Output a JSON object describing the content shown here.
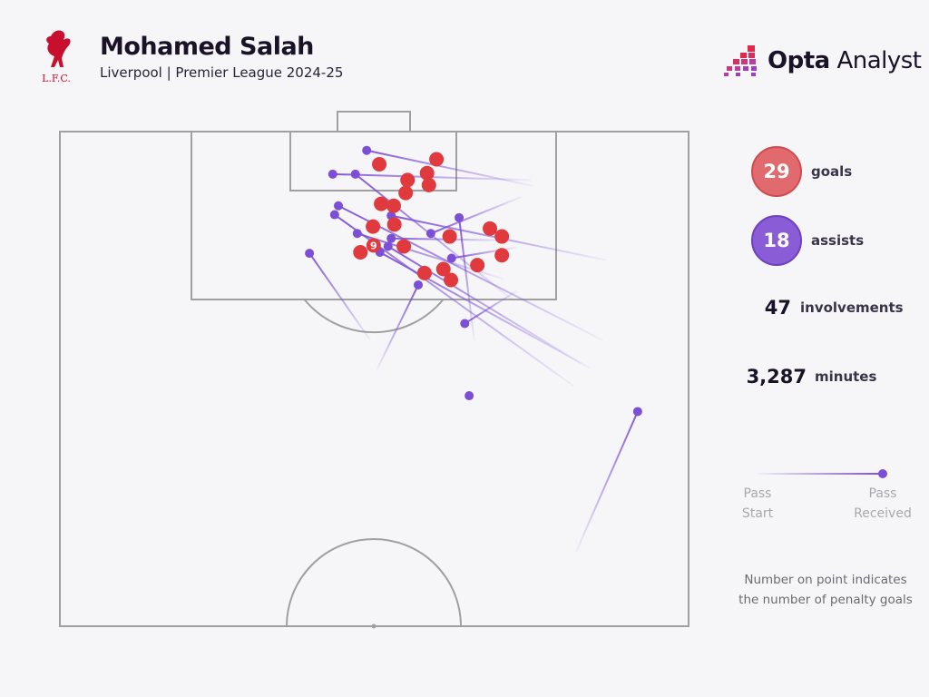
{
  "header": {
    "player": "Mohamed Salah",
    "subtitle": "Liverpool | Premier League 2024-25",
    "club_logo_text": "L.F.C.",
    "brand_bold": "Opta",
    "brand_light": "Analyst"
  },
  "stats": [
    {
      "value": "29",
      "label": "goals",
      "color": "#e06a6e"
    },
    {
      "value": "18",
      "label": "assists",
      "color": "#8a5cd6"
    },
    {
      "value": "47",
      "label": "involvements"
    },
    {
      "value": "3,287",
      "label": "minutes"
    }
  ],
  "legend": {
    "start": [
      "Pass",
      "Start"
    ],
    "received": [
      "Pass",
      "Received"
    ],
    "note": [
      "Number on point indicates",
      "the number of penalty goals"
    ]
  },
  "colors": {
    "goal": "#e0393e",
    "assist": "#7b4fd6",
    "pitch_line": "#a0a0a0",
    "background": "#f6f6f8"
  },
  "chart_data": {
    "type": "scatter",
    "pitch": "attacking half, goal at top; x = across pitch (0-100, left to right), y = length (100 = goal line, 50 = halfway)",
    "goals": [
      {
        "x": 50.8,
        "y": 96.7
      },
      {
        "x": 59.9,
        "y": 97.2
      },
      {
        "x": 58.4,
        "y": 95.8
      },
      {
        "x": 55.3,
        "y": 95.1
      },
      {
        "x": 58.7,
        "y": 94.6
      },
      {
        "x": 55.0,
        "y": 93.8
      },
      {
        "x": 51.1,
        "y": 92.7
      },
      {
        "x": 53.1,
        "y": 92.5
      },
      {
        "x": 53.2,
        "y": 90.6
      },
      {
        "x": 49.8,
        "y": 90.4
      },
      {
        "x": 62.0,
        "y": 89.4
      },
      {
        "x": 68.4,
        "y": 90.2
      },
      {
        "x": 70.3,
        "y": 89.4
      },
      {
        "x": 54.7,
        "y": 88.4
      },
      {
        "x": 49.9,
        "y": 88.5,
        "label": "9"
      },
      {
        "x": 47.8,
        "y": 87.8
      },
      {
        "x": 70.3,
        "y": 87.5
      },
      {
        "x": 66.4,
        "y": 86.5
      },
      {
        "x": 61.0,
        "y": 86.1
      },
      {
        "x": 58.0,
        "y": 85.7
      },
      {
        "x": 62.2,
        "y": 85.0
      }
    ],
    "assists": [
      {
        "received": [
          48.8,
          98.1
        ],
        "start": [
          75.3,
          94.5
        ]
      },
      {
        "received": [
          43.4,
          95.7
        ],
        "start": [
          74.9,
          95.1
        ]
      },
      {
        "received": [
          47.0,
          95.7
        ],
        "start": [
          72.0,
          83.0
        ]
      },
      {
        "received": [
          44.3,
          92.5
        ],
        "start": [
          86.4,
          78.9
        ]
      },
      {
        "received": [
          43.7,
          91.6
        ],
        "start": [
          81.7,
          74.3
        ]
      },
      {
        "received": [
          52.7,
          91.5
        ],
        "start": [
          86.9,
          87.0
        ]
      },
      {
        "received": [
          63.5,
          91.3
        ],
        "start": [
          65.9,
          78.9
        ]
      },
      {
        "received": [
          59.0,
          89.7
        ],
        "start": [
          73.4,
          93.4
        ]
      },
      {
        "received": [
          47.3,
          89.7
        ],
        "start": [
          70.6,
          85.1
        ]
      },
      {
        "received": [
          52.7,
          89.2
        ],
        "start": [
          71.3,
          89.0
        ]
      },
      {
        "received": [
          52.2,
          88.4
        ],
        "start": [
          82.8,
          76.6
        ]
      },
      {
        "received": [
          50.9,
          87.8
        ],
        "start": [
          84.3,
          76.1
        ]
      },
      {
        "received": [
          62.3,
          87.2
        ],
        "start": [
          72.7,
          88.3
        ]
      },
      {
        "received": [
          39.7,
          87.7
        ],
        "start": [
          49.4,
          78.9
        ]
      },
      {
        "received": [
          57.0,
          84.5
        ],
        "start": [
          50.4,
          75.9
        ]
      },
      {
        "received": [
          64.4,
          80.6
        ],
        "start": [
          72.7,
          83.9
        ]
      },
      {
        "received": [
          65.1,
          73.3
        ],
        "start": [
          65.1,
          73.3
        ]
      },
      {
        "received": [
          91.9,
          71.7
        ],
        "start": [
          82.1,
          57.5
        ]
      }
    ]
  }
}
